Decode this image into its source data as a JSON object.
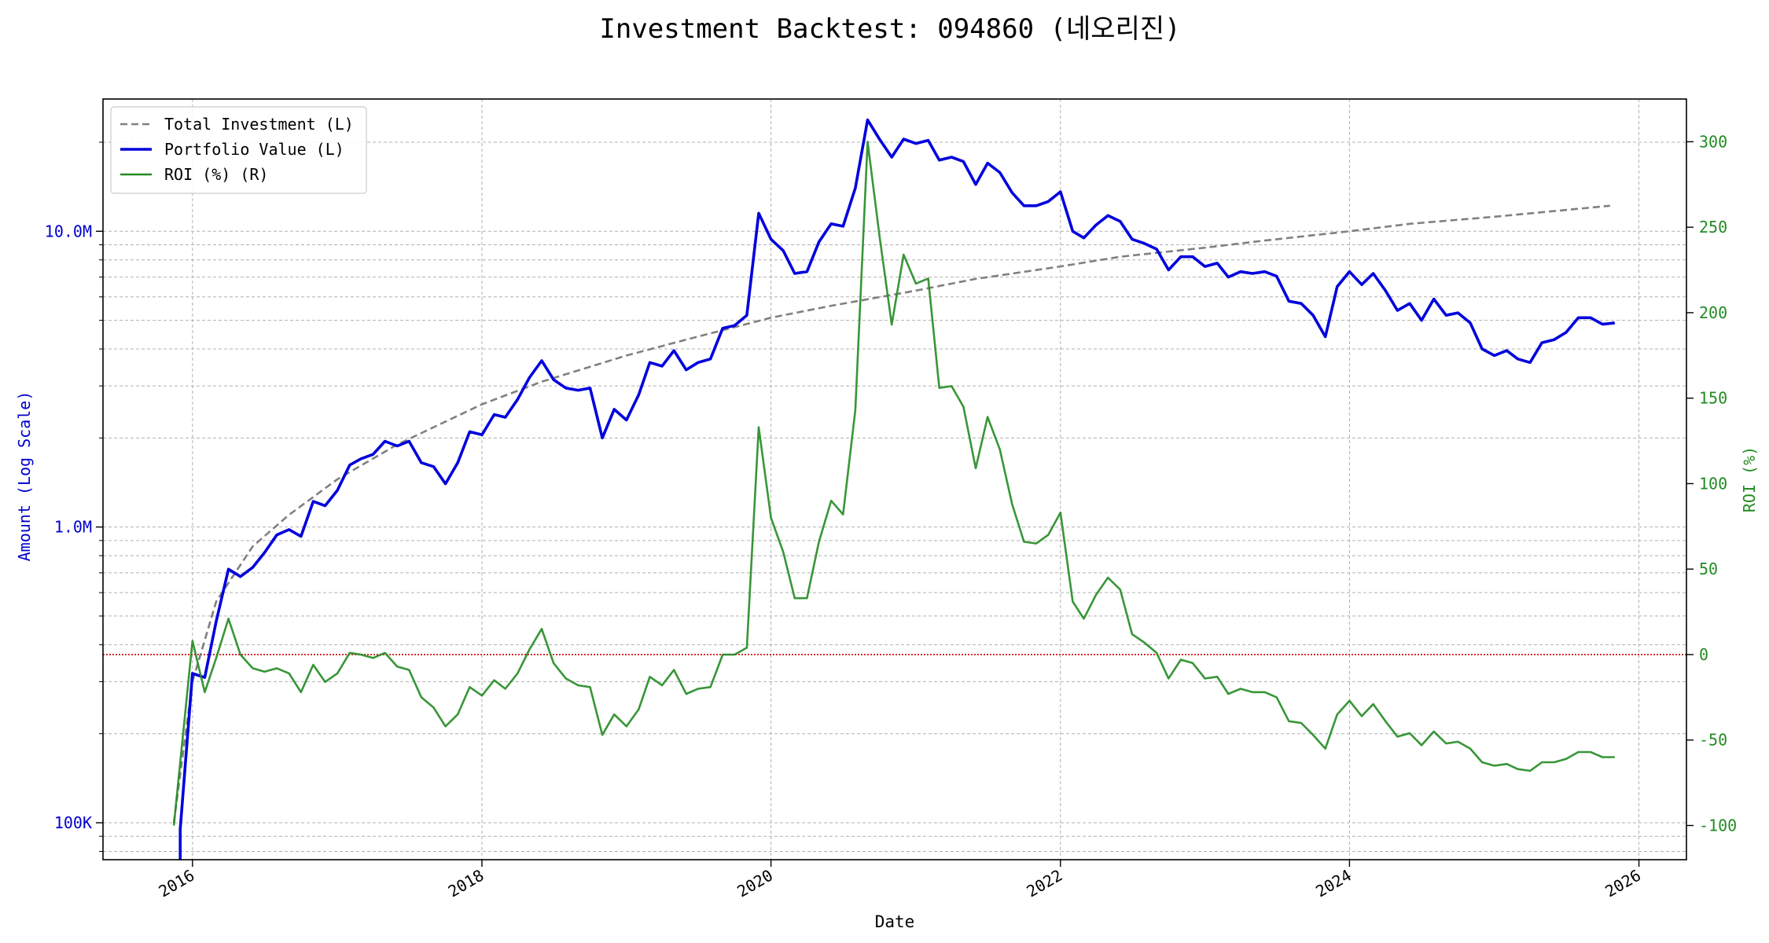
{
  "chart_data": {
    "type": "line",
    "title": "Investment Backtest: 094860 (네오리진)",
    "xlabel": "Date",
    "ylabel_left": "Amount (Log Scale)",
    "ylabel_right": "ROI (%)",
    "left_scale": "log",
    "left_ylim": [
      75000,
      28000000
    ],
    "left_ticks": [
      {
        "value": 100000,
        "label": "100K"
      },
      {
        "value": 1000000,
        "label": "1.0M"
      },
      {
        "value": 10000000,
        "label": "10.0M"
      }
    ],
    "right_ylim": [
      -120,
      325
    ],
    "right_ticks": [
      -100,
      -50,
      0,
      50,
      100,
      150,
      200,
      250,
      300
    ],
    "xlim": [
      "2015-05-20",
      "2026-05-01"
    ],
    "x_ticks": [
      "2016",
      "2018",
      "2020",
      "2022",
      "2024",
      "2026"
    ],
    "grid": true,
    "legend_position": "top-left",
    "colors": {
      "total_investment": "#808080",
      "portfolio_value": "#0000dd",
      "roi": "#228b22",
      "zero_line": "#cc0000",
      "left_axis": "#0000cc",
      "right_axis": "#228b22"
    },
    "series": [
      {
        "name": "Total Investment (L)",
        "axis": "left",
        "style": "dashed",
        "points": [
          [
            "2015-11-15",
            100000
          ],
          [
            "2016-01-01",
            300000
          ],
          [
            "2016-03-01",
            560000
          ],
          [
            "2016-06-01",
            860000
          ],
          [
            "2016-09-01",
            1100000
          ],
          [
            "2017-01-01",
            1450000
          ],
          [
            "2017-06-01",
            1900000
          ],
          [
            "2018-01-01",
            2600000
          ],
          [
            "2018-06-01",
            3100000
          ],
          [
            "2019-01-01",
            3800000
          ],
          [
            "2019-06-01",
            4300000
          ],
          [
            "2020-01-01",
            5100000
          ],
          [
            "2020-06-01",
            5600000
          ],
          [
            "2021-01-01",
            6300000
          ],
          [
            "2021-06-01",
            6900000
          ],
          [
            "2022-01-01",
            7600000
          ],
          [
            "2022-06-01",
            8200000
          ],
          [
            "2023-01-01",
            8800000
          ],
          [
            "2023-06-01",
            9300000
          ],
          [
            "2024-01-01",
            10000000
          ],
          [
            "2024-06-01",
            10600000
          ],
          [
            "2025-01-01",
            11200000
          ],
          [
            "2025-06-01",
            11700000
          ],
          [
            "2025-10-20",
            12200000
          ]
        ]
      },
      {
        "name": "Portfolio Value (L)",
        "axis": "left",
        "style": "solid",
        "points": [
          [
            "2015-12-01",
            60000
          ],
          [
            "2015-12-01",
            95000
          ],
          [
            "2016-01-01",
            320000
          ],
          [
            "2016-02-01",
            310000
          ],
          [
            "2016-03-01",
            480000
          ],
          [
            "2016-04-01",
            720000
          ],
          [
            "2016-05-01",
            680000
          ],
          [
            "2016-06-01",
            730000
          ],
          [
            "2016-07-01",
            820000
          ],
          [
            "2016-08-01",
            940000
          ],
          [
            "2016-09-01",
            980000
          ],
          [
            "2016-10-01",
            930000
          ],
          [
            "2016-11-01",
            1220000
          ],
          [
            "2016-12-01",
            1180000
          ],
          [
            "2017-01-01",
            1330000
          ],
          [
            "2017-02-01",
            1620000
          ],
          [
            "2017-03-01",
            1700000
          ],
          [
            "2017-04-01",
            1760000
          ],
          [
            "2017-05-01",
            1950000
          ],
          [
            "2017-06-01",
            1880000
          ],
          [
            "2017-07-01",
            1950000
          ],
          [
            "2017-08-01",
            1650000
          ],
          [
            "2017-09-01",
            1600000
          ],
          [
            "2017-10-01",
            1400000
          ],
          [
            "2017-11-01",
            1650000
          ],
          [
            "2017-12-01",
            2100000
          ],
          [
            "2018-01-01",
            2050000
          ],
          [
            "2018-02-01",
            2400000
          ],
          [
            "2018-03-01",
            2350000
          ],
          [
            "2018-04-01",
            2700000
          ],
          [
            "2018-05-01",
            3200000
          ],
          [
            "2018-06-01",
            3650000
          ],
          [
            "2018-07-01",
            3150000
          ],
          [
            "2018-08-01",
            2950000
          ],
          [
            "2018-09-01",
            2900000
          ],
          [
            "2018-10-01",
            2950000
          ],
          [
            "2018-11-01",
            2000000
          ],
          [
            "2018-12-01",
            2500000
          ],
          [
            "2019-01-01",
            2300000
          ],
          [
            "2019-02-01",
            2800000
          ],
          [
            "2019-03-01",
            3600000
          ],
          [
            "2019-04-01",
            3500000
          ],
          [
            "2019-05-01",
            3950000
          ],
          [
            "2019-06-01",
            3400000
          ],
          [
            "2019-07-01",
            3600000
          ],
          [
            "2019-08-01",
            3700000
          ],
          [
            "2019-09-01",
            4700000
          ],
          [
            "2019-10-01",
            4800000
          ],
          [
            "2019-11-01",
            5200000
          ],
          [
            "2019-12-01",
            11500000
          ],
          [
            "2020-01-01",
            9400000
          ],
          [
            "2020-02-01",
            8600000
          ],
          [
            "2020-03-01",
            7200000
          ],
          [
            "2020-04-01",
            7300000
          ],
          [
            "2020-05-01",
            9200000
          ],
          [
            "2020-06-01",
            10600000
          ],
          [
            "2020-07-01",
            10400000
          ],
          [
            "2020-08-01",
            14000000
          ],
          [
            "2020-09-01",
            23800000
          ],
          [
            "2020-10-01",
            20500000
          ],
          [
            "2020-11-01",
            17800000
          ],
          [
            "2020-12-01",
            20500000
          ],
          [
            "2021-01-01",
            19800000
          ],
          [
            "2021-02-01",
            20300000
          ],
          [
            "2021-03-01",
            17400000
          ],
          [
            "2021-04-01",
            17800000
          ],
          [
            "2021-05-01",
            17200000
          ],
          [
            "2021-06-01",
            14400000
          ],
          [
            "2021-07-01",
            17000000
          ],
          [
            "2021-08-01",
            15800000
          ],
          [
            "2021-09-01",
            13500000
          ],
          [
            "2021-10-01",
            12200000
          ],
          [
            "2021-11-01",
            12200000
          ],
          [
            "2021-12-01",
            12600000
          ],
          [
            "2022-01-01",
            13600000
          ],
          [
            "2022-02-01",
            10000000
          ],
          [
            "2022-03-01",
            9500000
          ],
          [
            "2022-04-01",
            10500000
          ],
          [
            "2022-05-01",
            11300000
          ],
          [
            "2022-06-01",
            10800000
          ],
          [
            "2022-07-01",
            9400000
          ],
          [
            "2022-08-01",
            9100000
          ],
          [
            "2022-09-01",
            8700000
          ],
          [
            "2022-10-01",
            7400000
          ],
          [
            "2022-11-01",
            8200000
          ],
          [
            "2022-12-01",
            8200000
          ],
          [
            "2023-01-01",
            7600000
          ],
          [
            "2023-02-01",
            7800000
          ],
          [
            "2023-03-01",
            7000000
          ],
          [
            "2023-04-01",
            7300000
          ],
          [
            "2023-05-01",
            7200000
          ],
          [
            "2023-06-01",
            7300000
          ],
          [
            "2023-07-01",
            7050000
          ],
          [
            "2023-08-01",
            5800000
          ],
          [
            "2023-09-01",
            5700000
          ],
          [
            "2023-10-01",
            5200000
          ],
          [
            "2023-11-01",
            4400000
          ],
          [
            "2023-12-01",
            6500000
          ],
          [
            "2024-01-01",
            7300000
          ],
          [
            "2024-02-01",
            6600000
          ],
          [
            "2024-03-01",
            7200000
          ],
          [
            "2024-04-01",
            6300000
          ],
          [
            "2024-05-01",
            5400000
          ],
          [
            "2024-06-01",
            5700000
          ],
          [
            "2024-07-01",
            5000000
          ],
          [
            "2024-08-01",
            5900000
          ],
          [
            "2024-09-01",
            5200000
          ],
          [
            "2024-10-01",
            5300000
          ],
          [
            "2024-11-01",
            4900000
          ],
          [
            "2024-12-01",
            4000000
          ],
          [
            "2025-01-01",
            3800000
          ],
          [
            "2025-02-01",
            3950000
          ],
          [
            "2025-03-01",
            3700000
          ],
          [
            "2025-04-01",
            3600000
          ],
          [
            "2025-05-01",
            4200000
          ],
          [
            "2025-06-01",
            4300000
          ],
          [
            "2025-07-01",
            4550000
          ],
          [
            "2025-08-01",
            5100000
          ],
          [
            "2025-09-01",
            5100000
          ],
          [
            "2025-10-01",
            4850000
          ],
          [
            "2025-11-01",
            4900000
          ]
        ]
      },
      {
        "name": "ROI (%) (R)",
        "axis": "right",
        "style": "solid",
        "points": [
          [
            "2015-11-15",
            -100
          ],
          [
            "2016-01-01",
            8
          ],
          [
            "2016-02-01",
            -22
          ],
          [
            "2016-03-01",
            -2
          ],
          [
            "2016-04-01",
            21
          ],
          [
            "2016-05-01",
            0
          ],
          [
            "2016-06-01",
            -8
          ],
          [
            "2016-07-01",
            -10
          ],
          [
            "2016-08-01",
            -8
          ],
          [
            "2016-09-01",
            -11
          ],
          [
            "2016-10-01",
            -22
          ],
          [
            "2016-11-01",
            -6
          ],
          [
            "2016-12-01",
            -16
          ],
          [
            "2017-01-01",
            -11
          ],
          [
            "2017-02-01",
            1
          ],
          [
            "2017-03-01",
            0
          ],
          [
            "2017-04-01",
            -2
          ],
          [
            "2017-05-01",
            1
          ],
          [
            "2017-06-01",
            -7
          ],
          [
            "2017-07-01",
            -9
          ],
          [
            "2017-08-01",
            -25
          ],
          [
            "2017-09-01",
            -31
          ],
          [
            "2017-10-01",
            -42
          ],
          [
            "2017-11-01",
            -35
          ],
          [
            "2017-12-01",
            -19
          ],
          [
            "2018-01-01",
            -24
          ],
          [
            "2018-02-01",
            -15
          ],
          [
            "2018-03-01",
            -20
          ],
          [
            "2018-04-01",
            -11
          ],
          [
            "2018-05-01",
            3
          ],
          [
            "2018-06-01",
            15
          ],
          [
            "2018-07-01",
            -5
          ],
          [
            "2018-08-01",
            -14
          ],
          [
            "2018-09-01",
            -18
          ],
          [
            "2018-10-01",
            -19
          ],
          [
            "2018-11-01",
            -47
          ],
          [
            "2018-12-01",
            -35
          ],
          [
            "2019-01-01",
            -42
          ],
          [
            "2019-02-01",
            -32
          ],
          [
            "2019-03-01",
            -13
          ],
          [
            "2019-04-01",
            -18
          ],
          [
            "2019-05-01",
            -9
          ],
          [
            "2019-06-01",
            -23
          ],
          [
            "2019-07-01",
            -20
          ],
          [
            "2019-08-01",
            -19
          ],
          [
            "2019-09-01",
            0
          ],
          [
            "2019-10-01",
            0
          ],
          [
            "2019-11-01",
            4
          ],
          [
            "2019-12-01",
            133
          ],
          [
            "2020-01-01",
            80
          ],
          [
            "2020-02-01",
            60
          ],
          [
            "2020-03-01",
            33
          ],
          [
            "2020-04-01",
            33
          ],
          [
            "2020-05-01",
            66
          ],
          [
            "2020-06-01",
            90
          ],
          [
            "2020-07-01",
            82
          ],
          [
            "2020-08-01",
            143
          ],
          [
            "2020-09-01",
            300
          ],
          [
            "2020-10-01",
            245
          ],
          [
            "2020-11-01",
            193
          ],
          [
            "2020-12-01",
            234
          ],
          [
            "2021-01-01",
            217
          ],
          [
            "2021-02-01",
            220
          ],
          [
            "2021-03-01",
            156
          ],
          [
            "2021-04-01",
            157
          ],
          [
            "2021-05-01",
            145
          ],
          [
            "2021-06-01",
            109
          ],
          [
            "2021-07-01",
            139
          ],
          [
            "2021-08-01",
            120
          ],
          [
            "2021-09-01",
            88
          ],
          [
            "2021-10-01",
            66
          ],
          [
            "2021-11-01",
            65
          ],
          [
            "2021-12-01",
            70
          ],
          [
            "2022-01-01",
            83
          ],
          [
            "2022-02-01",
            31
          ],
          [
            "2022-03-01",
            21
          ],
          [
            "2022-04-01",
            35
          ],
          [
            "2022-05-01",
            45
          ],
          [
            "2022-06-01",
            38
          ],
          [
            "2022-07-01",
            12
          ],
          [
            "2022-08-01",
            7
          ],
          [
            "2022-09-01",
            1
          ],
          [
            "2022-10-01",
            -14
          ],
          [
            "2022-11-01",
            -3
          ],
          [
            "2022-12-01",
            -5
          ],
          [
            "2023-01-01",
            -14
          ],
          [
            "2023-02-01",
            -13
          ],
          [
            "2023-03-01",
            -23
          ],
          [
            "2023-04-01",
            -20
          ],
          [
            "2023-05-01",
            -22
          ],
          [
            "2023-06-01",
            -22
          ],
          [
            "2023-07-01",
            -25
          ],
          [
            "2023-08-01",
            -39
          ],
          [
            "2023-09-01",
            -40
          ],
          [
            "2023-10-01",
            -47
          ],
          [
            "2023-11-01",
            -55
          ],
          [
            "2023-12-01",
            -35
          ],
          [
            "2024-01-01",
            -27
          ],
          [
            "2024-02-01",
            -36
          ],
          [
            "2024-03-01",
            -29
          ],
          [
            "2024-04-01",
            -39
          ],
          [
            "2024-05-01",
            -48
          ],
          [
            "2024-06-01",
            -46
          ],
          [
            "2024-07-01",
            -53
          ],
          [
            "2024-08-01",
            -45
          ],
          [
            "2024-09-01",
            -52
          ],
          [
            "2024-10-01",
            -51
          ],
          [
            "2024-11-01",
            -55
          ],
          [
            "2024-12-01",
            -63
          ],
          [
            "2025-01-01",
            -65
          ],
          [
            "2025-02-01",
            -64
          ],
          [
            "2025-03-01",
            -67
          ],
          [
            "2025-04-01",
            -68
          ],
          [
            "2025-05-01",
            -63
          ],
          [
            "2025-06-01",
            -63
          ],
          [
            "2025-07-01",
            -61
          ],
          [
            "2025-08-01",
            -57
          ],
          [
            "2025-09-01",
            -57
          ],
          [
            "2025-10-01",
            -60
          ],
          [
            "2025-11-01",
            -60
          ]
        ]
      }
    ]
  }
}
